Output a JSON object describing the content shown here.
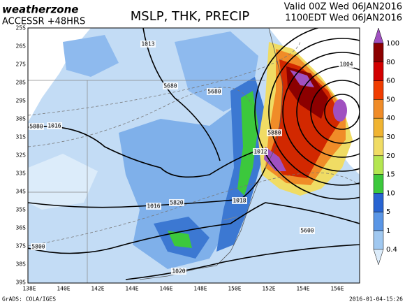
{
  "header": {
    "logo": "weatherzone",
    "model": "ACCESSR +48HRS",
    "title": "MSLP, THK, PRECIP",
    "valid": "Valid 00Z Wed 06JAN2016",
    "local_time": "1100EDT Wed 06JAN2016"
  },
  "map": {
    "lat_labels": [
      "25S",
      "26S",
      "27S",
      "28S",
      "29S",
      "30S",
      "31S",
      "32S",
      "33S",
      "34S",
      "35S",
      "36S",
      "37S",
      "38S",
      "39S"
    ],
    "lon_labels": [
      "138E",
      "140E",
      "142E",
      "144E",
      "146E",
      "148E",
      "150E",
      "152E",
      "154E",
      "156E"
    ],
    "contour_labels": [
      "1013",
      "1004",
      "5680",
      "5680",
      "5880",
      "1016",
      "5880",
      "1012",
      "1016",
      "5820",
      "1018",
      "5600",
      "5800",
      "1020"
    ]
  },
  "colorbar": {
    "levels": [
      100,
      80,
      60,
      50,
      40,
      30,
      20,
      15,
      10,
      5,
      1,
      0.4
    ],
    "colors": [
      "#a050c0",
      "#8c0000",
      "#d20000",
      "#f03c00",
      "#f08c28",
      "#f0b432",
      "#f0dc64",
      "#b4e650",
      "#3cc83c",
      "#2864d2",
      "#5a96e6",
      "#a0c8f0",
      "#dcecfa"
    ]
  },
  "footer": {
    "credit": "GrADS: COLA/IGES",
    "timestamp": "2016-01-04-15:26"
  }
}
